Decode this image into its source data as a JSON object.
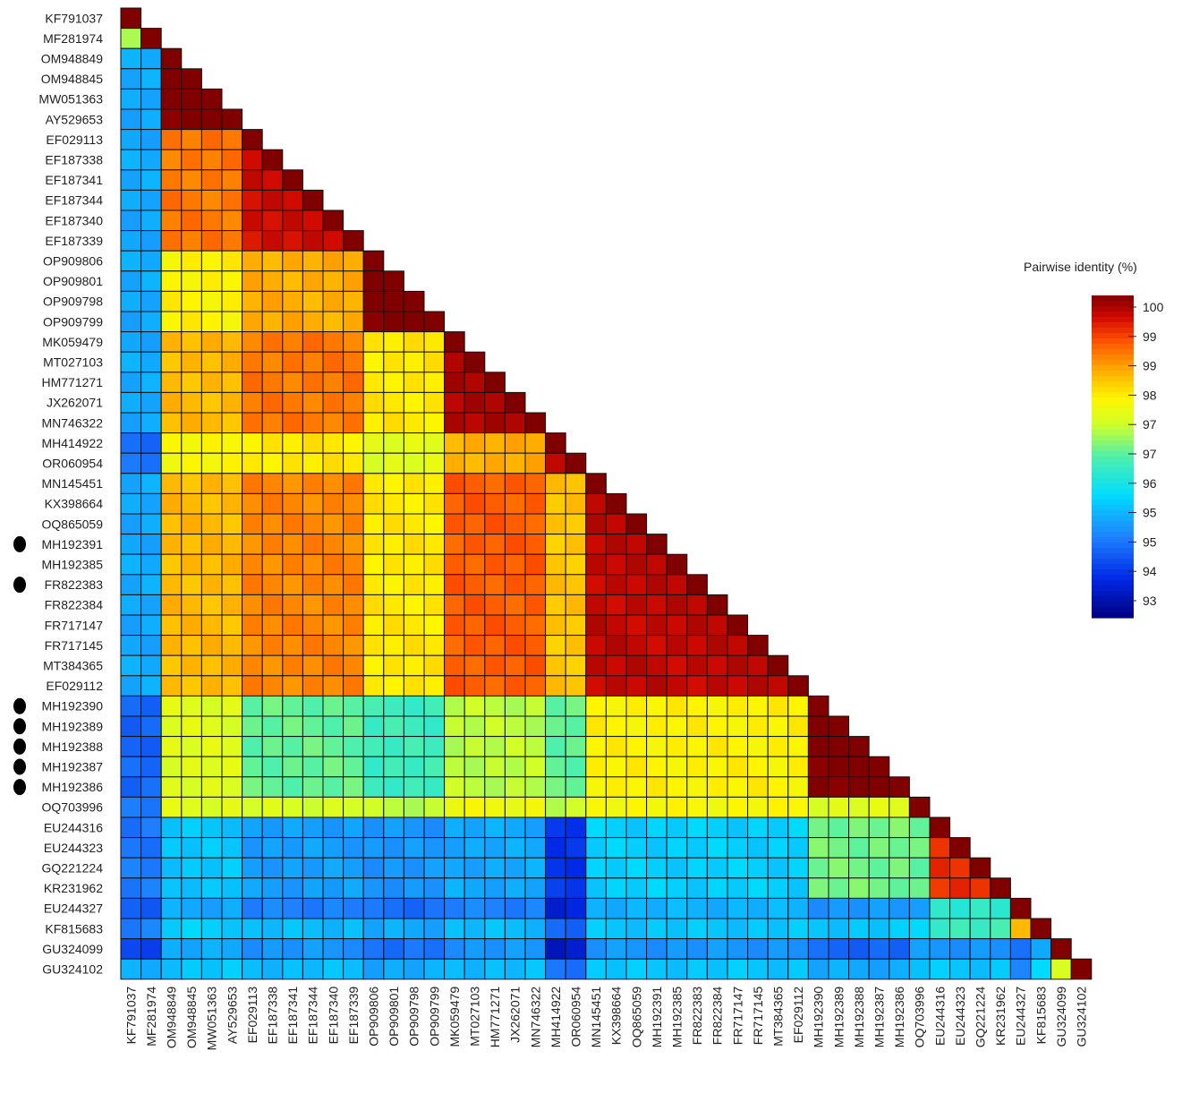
{
  "chart_data": {
    "type": "heatmap",
    "title": "",
    "xlabel": "",
    "ylabel": "",
    "legend": {
      "title": "Pairwise identity (%)",
      "ticks": [
        "100",
        "99",
        "99",
        "98",
        "97",
        "97",
        "96",
        "95",
        "95",
        "94",
        "93"
      ],
      "placement": "right"
    },
    "labels": [
      "KF791037",
      "MF281974",
      "OM948849",
      "OM948845",
      "MW051363",
      "AY529653",
      "EF029113",
      "EF187338",
      "EF187341",
      "EF187344",
      "EF187340",
      "EF187339",
      "OP909806",
      "OP909801",
      "OP909798",
      "OP909799",
      "MK059479",
      "MT027103",
      "HM771271",
      "JX262071",
      "MN746322",
      "MH414922",
      "OR060954",
      "MN145451",
      "KX398664",
      "OQ865059",
      "MH192391",
      "MH192385",
      "FR822383",
      "FR822384",
      "FR717147",
      "FR717145",
      "MT384365",
      "EF029112",
      "MH192390",
      "MH192389",
      "MH192388",
      "MH192387",
      "MH192386",
      "OQ703996",
      "EU244316",
      "EU244323",
      "GQ221224",
      "KR231962",
      "EU244327",
      "KF815683",
      "GU324099",
      "GU324102"
    ],
    "marked_labels": [
      "MH192391",
      "FR822383",
      "MH192390",
      "MH192389",
      "MH192388",
      "MH192387",
      "MH192386"
    ],
    "value_range": [
      92.8,
      100
    ]
  }
}
